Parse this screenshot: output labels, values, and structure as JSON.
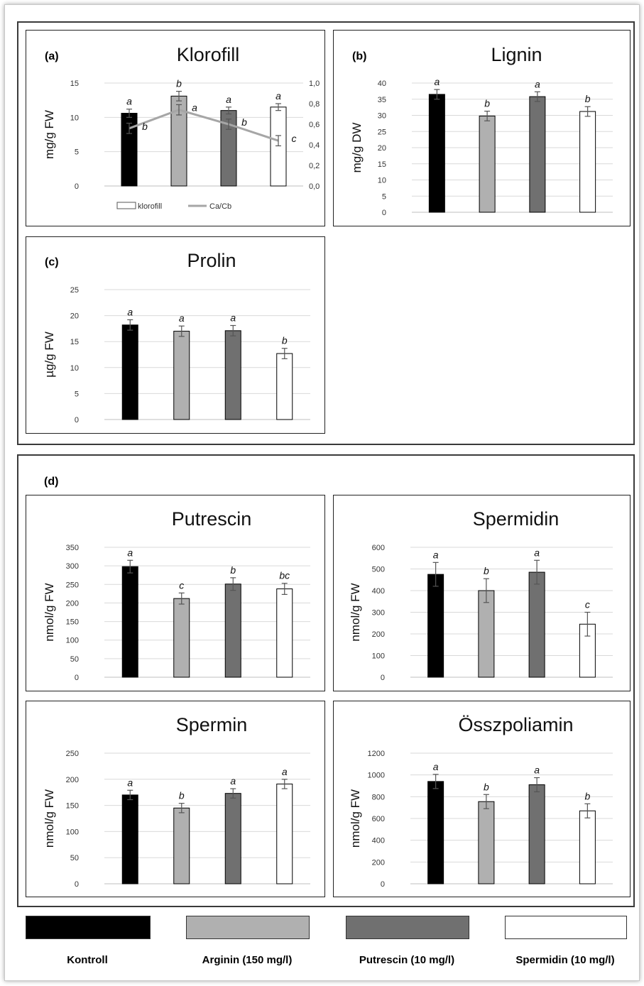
{
  "chart_data": [
    {
      "id": "klorofill",
      "type": "bar",
      "panel_label": "(a)",
      "title": "Klorofill",
      "ylabel": "mg/g FW",
      "ylim": [
        0,
        15
      ],
      "yticks": [
        0,
        5,
        10,
        15
      ],
      "categories": [
        "Kontroll",
        "Arginin (150 mg/l)",
        "Putrescin (10 mg/l)",
        "Spermidin (10 mg/l)"
      ],
      "values": [
        10.6,
        13.1,
        11.0,
        11.5
      ],
      "errors": [
        0.6,
        0.7,
        0.5,
        0.5
      ],
      "letters": [
        "a",
        "b",
        "a",
        "a"
      ],
      "secondary": {
        "type": "line",
        "name": "Ca/Cb",
        "ylim": [
          0,
          1.0
        ],
        "yticks": [
          "0,0",
          "0,2",
          "0,4",
          "0,6",
          "0,8",
          "1,0"
        ],
        "values": [
          0.56,
          0.74,
          0.6,
          0.44
        ],
        "errors": [
          0.05,
          0.05,
          0.05,
          0.05
        ],
        "letters": [
          "b",
          "a",
          "b",
          "c"
        ]
      },
      "legend": [
        "klorofill",
        "Ca/Cb"
      ]
    },
    {
      "id": "lignin",
      "type": "bar",
      "panel_label": "(b)",
      "title": "Lignin",
      "ylabel": "mg/g DW",
      "ylim": [
        0,
        40
      ],
      "yticks": [
        0,
        5,
        10,
        15,
        20,
        25,
        30,
        35,
        40
      ],
      "values": [
        36.5,
        29.8,
        35.8,
        31.2
      ],
      "errors": [
        1.5,
        1.5,
        1.5,
        1.5
      ],
      "letters": [
        "a",
        "b",
        "a",
        "b"
      ]
    },
    {
      "id": "prolin",
      "type": "bar",
      "panel_label": "(c)",
      "title": "Prolin",
      "ylabel": "µg/g FW",
      "ylim": [
        0,
        25
      ],
      "yticks": [
        0,
        5,
        10,
        15,
        20,
        25
      ],
      "values": [
        18.2,
        17.0,
        17.1,
        12.7
      ],
      "errors": [
        1.0,
        1.0,
        1.0,
        1.0
      ],
      "letters": [
        "a",
        "a",
        "a",
        "b"
      ]
    },
    {
      "id": "putrescin",
      "type": "bar",
      "title": "Putrescin",
      "ylabel": "nmol/g FW",
      "ylim": [
        0,
        350
      ],
      "yticks": [
        0,
        50,
        100,
        150,
        200,
        250,
        300,
        350
      ],
      "values": [
        298,
        212,
        251,
        238
      ],
      "errors": [
        17,
        15,
        17,
        15
      ],
      "letters": [
        "a",
        "c",
        "b",
        "bc"
      ]
    },
    {
      "id": "spermidin",
      "type": "bar",
      "title": "Spermidin",
      "ylabel": "nmol/g FW",
      "ylim": [
        0,
        600
      ],
      "yticks": [
        0,
        100,
        200,
        300,
        400,
        500,
        600
      ],
      "values": [
        475,
        400,
        485,
        245
      ],
      "errors": [
        55,
        55,
        55,
        55
      ],
      "letters": [
        "a",
        "b",
        "a",
        "c"
      ]
    },
    {
      "id": "spermin",
      "type": "bar",
      "title": "Spermin",
      "ylabel": "nmol/g FW",
      "ylim": [
        0,
        250
      ],
      "yticks": [
        0,
        50,
        100,
        150,
        200,
        250
      ],
      "values": [
        170,
        145,
        173,
        191
      ],
      "errors": [
        9,
        9,
        9,
        9
      ],
      "letters": [
        "a",
        "b",
        "a",
        "a"
      ]
    },
    {
      "id": "osszpoliamin",
      "type": "bar",
      "title": "Összpoliamin",
      "ylabel": "nmol/g FW",
      "ylim": [
        0,
        1200
      ],
      "yticks": [
        0,
        200,
        400,
        600,
        800,
        1000,
        1200
      ],
      "values": [
        940,
        755,
        910,
        670
      ],
      "errors": [
        65,
        65,
        65,
        65
      ],
      "letters": [
        "a",
        "b",
        "a",
        "b"
      ]
    }
  ],
  "group_d_label": "(d)",
  "legend": {
    "items": [
      {
        "label": "Kontroll",
        "color": "#000000"
      },
      {
        "label": "Arginin (150 mg/l)",
        "color": "#b0b0b0"
      },
      {
        "label": "Putrescin (10 mg/l)",
        "color": "#707070"
      },
      {
        "label": "Spermidin (10 mg/l)",
        "color": "#ffffff"
      }
    ]
  },
  "colors": {
    "bars": [
      "#000000",
      "#b0b0b0",
      "#707070",
      "#ffffff"
    ],
    "line": "#a6a6a6",
    "grid": "#d9d9d9"
  }
}
